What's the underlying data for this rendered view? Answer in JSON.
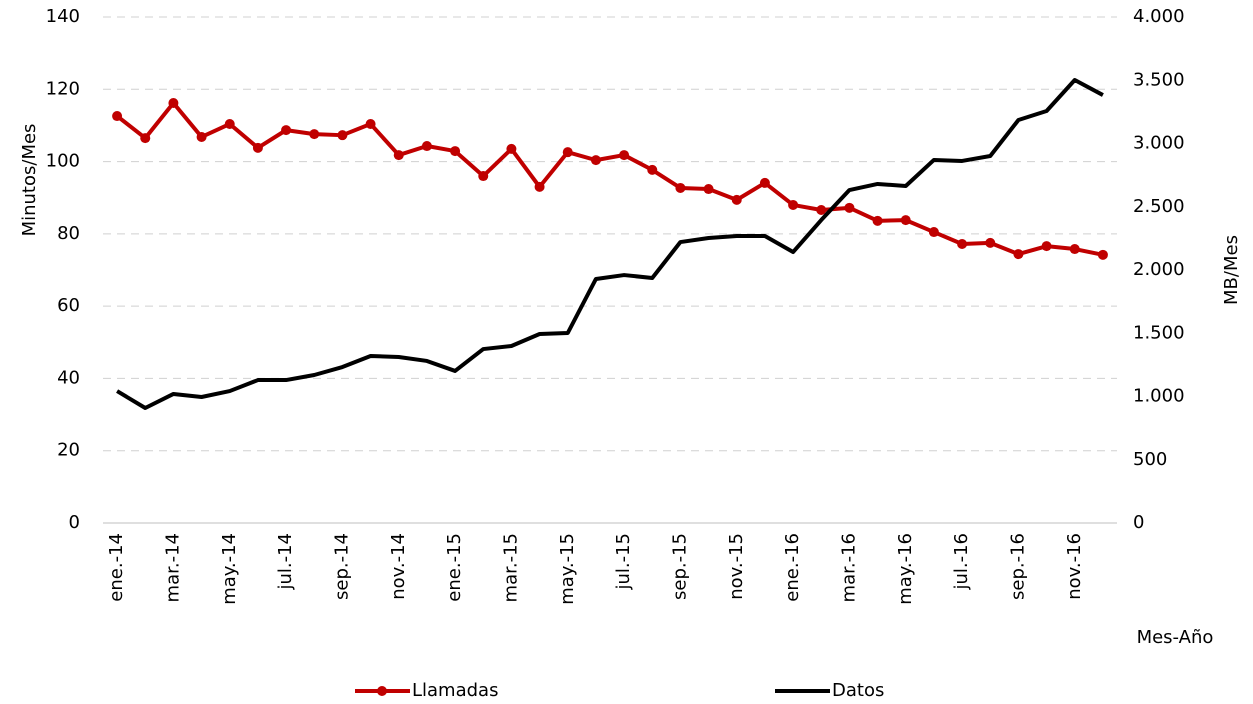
{
  "chart_data": {
    "type": "line",
    "x_label": "Mes-Año",
    "y_label": "Minutos/Mes",
    "y2_label": "MB/Mes",
    "categories": [
      "ene.-14",
      null,
      "mar.-14",
      null,
      "may.-14",
      null,
      "jul.-14",
      null,
      "sep.-14",
      null,
      "nov.-14",
      null,
      "ene.-15",
      null,
      "mar.-15",
      null,
      "may.-15",
      null,
      "jul.-15",
      null,
      "sep.-15",
      null,
      "nov.-15",
      null,
      "ene.-16",
      null,
      "mar.-16",
      null,
      "may.-16",
      null,
      "jul.-16",
      null,
      "sep.-16",
      null,
      "nov.-16",
      null
    ],
    "series": [
      {
        "name": "Llamadas",
        "color": "#c00000",
        "markers": true,
        "values": [
          112.6,
          106.5,
          116.2,
          106.8,
          110.4,
          103.8,
          108.7,
          107.6,
          107.3,
          110.4,
          101.8,
          104.3,
          102.9,
          96,
          103.5,
          93,
          102.6,
          100.4,
          101.8,
          97.7,
          92.7,
          92.4,
          89.4,
          94.1,
          88,
          86.6,
          87.2,
          83.6,
          83.8,
          80.5,
          77.2,
          77.5,
          74.4,
          76.6,
          75.8,
          74.2
        ]
      },
      {
        "name": "Datos",
        "color": "#000000",
        "axis": "y2",
        "markers": false,
        "values": [
          1043,
          909,
          1020,
          996,
          1043,
          1130,
          1130,
          1170,
          1233,
          1320,
          1312,
          1281,
          1202,
          1375,
          1399,
          1494,
          1502,
          1929,
          1960,
          1937,
          2221,
          2253,
          2269,
          2269,
          2142,
          2395,
          2632,
          2680,
          2664,
          2870,
          2862,
          2901,
          3186,
          3257,
          3502,
          3383
        ]
      }
    ],
    "ylim": [
      0,
      140
    ],
    "yticks": [
      0,
      20,
      40,
      60,
      80,
      100,
      120,
      140
    ],
    "y2lim": [
      0,
      4000
    ],
    "y2ticks": [
      0,
      500,
      {
        "value": 1000,
        "label": "1.000"
      },
      {
        "value": 1500,
        "label": "1.500"
      },
      {
        "value": 2000,
        "label": "2.000"
      },
      {
        "value": 2500,
        "label": "2.500"
      },
      {
        "value": 3000,
        "label": "3.000"
      },
      {
        "value": 3500,
        "label": "3.500"
      },
      {
        "value": 4000,
        "label": "4.000"
      }
    ],
    "grid": true,
    "legend": "bottom"
  }
}
